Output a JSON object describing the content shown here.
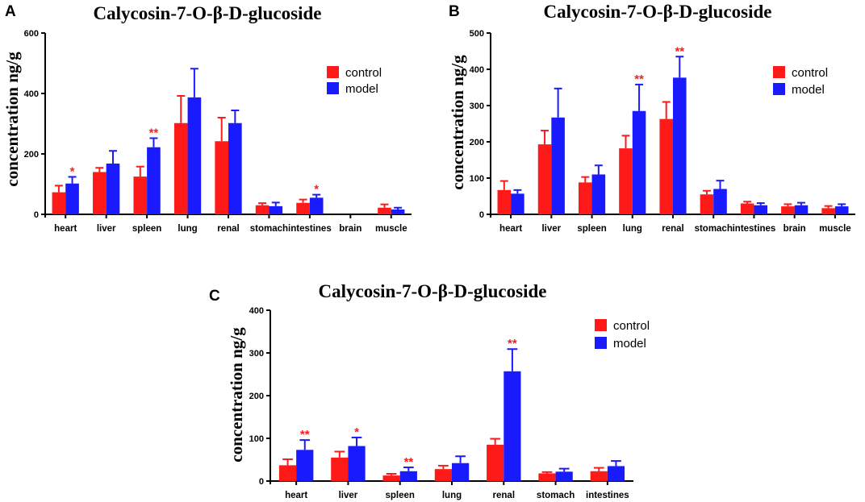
{
  "colors": {
    "control": "#ff1a1a",
    "model": "#1a1aff",
    "significance": "#ff1a1a",
    "axis": "#000000"
  },
  "chart_data": [
    {
      "panel": "A",
      "type": "bar",
      "title": "Calycosin-7-O-β-D-glucoside",
      "xlabel": "",
      "ylabel": "concentration ng/g",
      "ylim": [
        0,
        600
      ],
      "yticks": [
        0,
        200,
        400,
        600
      ],
      "legend": "top-right",
      "categories": [
        "heart",
        "liver",
        "spleen",
        "lung",
        "renal",
        "stomach",
        "intestines",
        "brain",
        "muscle"
      ],
      "series": [
        {
          "name": "control",
          "values": [
            73,
            140,
            125,
            302,
            242,
            30,
            38,
            0,
            22
          ],
          "errors": [
            22,
            14,
            33,
            90,
            78,
            7,
            11,
            0,
            11
          ]
        },
        {
          "name": "model",
          "values": [
            102,
            168,
            222,
            387,
            302,
            27,
            55,
            0,
            16
          ],
          "errors": [
            22,
            42,
            30,
            95,
            42,
            12,
            10,
            0,
            6
          ]
        }
      ],
      "significance": [
        "*",
        "",
        "**",
        "",
        "",
        "",
        "*",
        "",
        ""
      ]
    },
    {
      "panel": "B",
      "type": "bar",
      "title": "Calycosin-7-O-β-D-glucoside",
      "xlabel": "",
      "ylabel": "concentration ng/g",
      "ylim": [
        0,
        500
      ],
      "yticks": [
        0,
        100,
        200,
        300,
        400,
        500
      ],
      "legend": "top-right",
      "categories": [
        "heart",
        "liver",
        "spleen",
        "lung",
        "renal",
        "stomach",
        "intestines",
        "brain",
        "muscle"
      ],
      "series": [
        {
          "name": "control",
          "values": [
            67,
            193,
            88,
            182,
            263,
            55,
            30,
            22,
            17
          ],
          "errors": [
            25,
            38,
            15,
            35,
            47,
            10,
            5,
            6,
            6
          ]
        },
        {
          "name": "model",
          "values": [
            57,
            267,
            110,
            285,
            377,
            70,
            25,
            25,
            22
          ],
          "errors": [
            10,
            80,
            25,
            73,
            58,
            23,
            6,
            7,
            6
          ]
        }
      ],
      "significance": [
        "",
        "",
        "",
        "**",
        "**",
        "",
        "",
        "",
        ""
      ]
    },
    {
      "panel": "C",
      "type": "bar",
      "title": "Calycosin-7-O-β-D-glucoside",
      "xlabel": "",
      "ylabel": "concentration ng/g",
      "ylim": [
        0,
        400
      ],
      "yticks": [
        0,
        100,
        200,
        300,
        400
      ],
      "legend": "top-right",
      "categories": [
        "heart",
        "liver",
        "spleen",
        "lung",
        "renal",
        "stomach",
        "intestines"
      ],
      "series": [
        {
          "name": "control",
          "values": [
            37,
            55,
            13,
            28,
            85,
            18,
            23
          ],
          "errors": [
            14,
            14,
            4,
            8,
            14,
            3,
            8
          ]
        },
        {
          "name": "model",
          "values": [
            73,
            82,
            23,
            42,
            257,
            22,
            35
          ],
          "errors": [
            23,
            20,
            9,
            16,
            52,
            7,
            12
          ]
        }
      ],
      "significance": [
        "**",
        "*",
        "**",
        "",
        "**",
        "",
        ""
      ]
    }
  ]
}
